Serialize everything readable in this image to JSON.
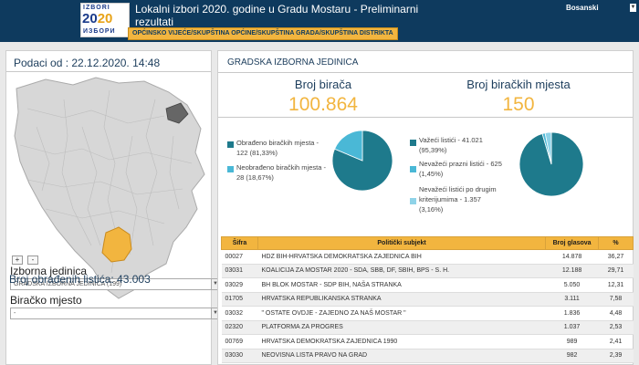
{
  "header": {
    "logo": {
      "line1": "IZBORI",
      "year_a": "20",
      "year_b": "20",
      "line3": "ИЗБОРИ"
    },
    "title": "Lokalni izbori 2020. godine u Gradu Mostaru - Preliminarni rezultati",
    "language": "Bosanski",
    "nav_label": "OPĆINSKO VIJEĆE/SKUPŠTINA OPĆINE/SKUPŠTINA GRADA/SKUPŠTINA DISTRIKTA"
  },
  "left": {
    "date_label": "Podaci od : 22.12.2020. 14:48",
    "zoom_in": "+",
    "zoom_out": "-",
    "unit_label": "Izborna jedinica",
    "unit_value": "GRADSKA IZBORNA JEDINICA (199)",
    "place_label": "Biračko mjesto",
    "place_value": "-",
    "processed": "Broj obrađenih listića: 43.003"
  },
  "right": {
    "title": "GRADSKA IZBORNA JEDINICA",
    "voters_label": "Broj birača",
    "voters_value": "100.864",
    "stations_label": "Broj biračkih mjesta",
    "stations_value": "150",
    "legend_left": [
      {
        "text_1": "Obrađeno biračkih mjesta -",
        "text_2": "122 (81,33%)",
        "color": "#1e7a8c"
      },
      {
        "text_1": "Neobrađeno biračkih mjesta -",
        "text_2": "28 (18,67%)",
        "color": "#4ab8d6"
      }
    ],
    "legend_right": [
      {
        "text_1": "Važeći listići - 41.021",
        "text_2": "(95,39%)",
        "color": "#1e7a8c"
      },
      {
        "text_1": "Nevažeći prazni listići - 625",
        "text_2": "(1,45%)",
        "color": "#4ab8d6"
      },
      {
        "text_1": "Nevažeći listići po drugim",
        "text_2": "kriterijumima - 1.357",
        "text_3": "(3,16%)",
        "color": "#8fd3e8"
      }
    ]
  },
  "pies": {
    "stations": [
      81.33,
      18.67
    ],
    "ballots": [
      95.39,
      1.45,
      3.16
    ]
  },
  "table": {
    "headers": [
      "Šifra",
      "Politički subjekt",
      "Broj glasova",
      "%"
    ],
    "rows": [
      [
        "00027",
        "HDZ BIH-HRVATSKA DEMOKRATSKA ZAJEDNICA BIH",
        "14.878",
        "36,27"
      ],
      [
        "03031",
        "KOALICIJA ZA MOSTAR 2020 - SDA, SBB, DF, SBIH, BPS - S. H.",
        "12.188",
        "29,71"
      ],
      [
        "03029",
        "BH BLOK MOSTAR - SDP BIH, NAŠA STRANKA",
        "5.050",
        "12,31"
      ],
      [
        "01705",
        "HRVATSKA REPUBLIKANSKA STRANKA",
        "3.111",
        "7,58"
      ],
      [
        "03032",
        "\" OSTATE OVDJE - ZAJEDNO ZA NAŠ MOSTAR \"",
        "1.836",
        "4,48"
      ],
      [
        "02320",
        "PLATFORMA ZA PROGRES",
        "1.037",
        "2,53"
      ],
      [
        "00769",
        "HRVATSKA DEMOKRATSKA ZAJEDNICA 1990",
        "989",
        "2,41"
      ],
      [
        "03030",
        "NEOVISNA LISTA PRAVO NA GRAD",
        "982",
        "2,39"
      ]
    ]
  }
}
